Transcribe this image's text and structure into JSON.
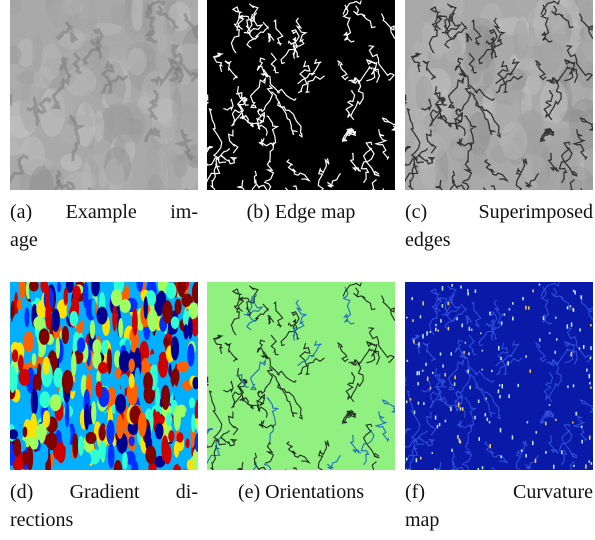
{
  "figure": {
    "panels": [
      {
        "caption": [
          "(a) Example im-",
          "age"
        ]
      },
      {
        "caption": [
          "(b) Edge map"
        ]
      },
      {
        "caption": [
          "(c) Superimposed",
          "edges"
        ]
      },
      {
        "caption": [
          "(d) Gradient di-",
          "rections"
        ]
      },
      {
        "caption": [
          "(e) Orientations"
        ]
      },
      {
        "caption": [
          "(f) Curvature",
          "map"
        ]
      }
    ]
  }
}
